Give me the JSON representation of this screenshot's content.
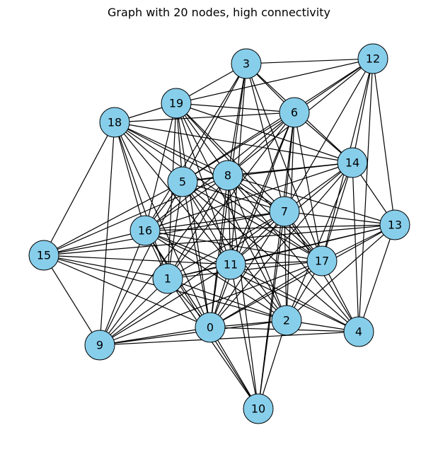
{
  "title": "Graph with 20 nodes, high connectivity",
  "colors": {
    "node_fill": "#87ceeb",
    "node_stroke": "#000000",
    "edge": "#000000",
    "background": "#ffffff"
  },
  "nodes": [
    {
      "id": "0",
      "label": "0"
    },
    {
      "id": "1",
      "label": "1"
    },
    {
      "id": "2",
      "label": "2"
    },
    {
      "id": "3",
      "label": "3"
    },
    {
      "id": "4",
      "label": "4"
    },
    {
      "id": "5",
      "label": "5"
    },
    {
      "id": "6",
      "label": "6"
    },
    {
      "id": "7",
      "label": "7"
    },
    {
      "id": "8",
      "label": "8"
    },
    {
      "id": "9",
      "label": "9"
    },
    {
      "id": "10",
      "label": "10"
    },
    {
      "id": "11",
      "label": "11"
    },
    {
      "id": "12",
      "label": "12"
    },
    {
      "id": "13",
      "label": "13"
    },
    {
      "id": "14",
      "label": "14"
    },
    {
      "id": "15",
      "label": "15"
    },
    {
      "id": "16",
      "label": "16"
    },
    {
      "id": "17",
      "label": "17"
    },
    {
      "id": "18",
      "label": "18"
    },
    {
      "id": "19",
      "label": "19"
    }
  ],
  "edges": [
    [
      "3",
      "12"
    ],
    [
      "3",
      "6"
    ],
    [
      "3",
      "14"
    ],
    [
      "3",
      "8"
    ],
    [
      "3",
      "5"
    ],
    [
      "3",
      "16"
    ],
    [
      "3",
      "11"
    ],
    [
      "3",
      "7"
    ],
    [
      "3",
      "19"
    ],
    [
      "3",
      "0"
    ],
    [
      "3",
      "17"
    ],
    [
      "12",
      "6"
    ],
    [
      "12",
      "14"
    ],
    [
      "12",
      "13"
    ],
    [
      "12",
      "17"
    ],
    [
      "12",
      "4"
    ],
    [
      "12",
      "19"
    ],
    [
      "12",
      "5"
    ],
    [
      "12",
      "8"
    ],
    [
      "12",
      "7"
    ],
    [
      "19",
      "18"
    ],
    [
      "19",
      "6"
    ],
    [
      "19",
      "14"
    ],
    [
      "19",
      "8"
    ],
    [
      "19",
      "5"
    ],
    [
      "19",
      "16"
    ],
    [
      "19",
      "1"
    ],
    [
      "19",
      "11"
    ],
    [
      "19",
      "7"
    ],
    [
      "19",
      "17"
    ],
    [
      "19",
      "0"
    ],
    [
      "19",
      "2"
    ],
    [
      "18",
      "6"
    ],
    [
      "18",
      "8"
    ],
    [
      "18",
      "5"
    ],
    [
      "18",
      "16"
    ],
    [
      "18",
      "15"
    ],
    [
      "18",
      "9"
    ],
    [
      "18",
      "11"
    ],
    [
      "18",
      "7"
    ],
    [
      "18",
      "17"
    ],
    [
      "18",
      "14"
    ],
    [
      "18",
      "0"
    ],
    [
      "18",
      "1"
    ],
    [
      "6",
      "14"
    ],
    [
      "6",
      "8"
    ],
    [
      "6",
      "5"
    ],
    [
      "6",
      "16"
    ],
    [
      "6",
      "7"
    ],
    [
      "6",
      "11"
    ],
    [
      "6",
      "17"
    ],
    [
      "6",
      "1"
    ],
    [
      "6",
      "0"
    ],
    [
      "6",
      "2"
    ],
    [
      "6",
      "10"
    ],
    [
      "14",
      "8"
    ],
    [
      "14",
      "5"
    ],
    [
      "14",
      "16"
    ],
    [
      "14",
      "7"
    ],
    [
      "14",
      "13"
    ],
    [
      "14",
      "17"
    ],
    [
      "14",
      "11"
    ],
    [
      "14",
      "4"
    ],
    [
      "14",
      "2"
    ],
    [
      "14",
      "0"
    ],
    [
      "5",
      "8"
    ],
    [
      "5",
      "16"
    ],
    [
      "5",
      "1"
    ],
    [
      "5",
      "11"
    ],
    [
      "5",
      "7"
    ],
    [
      "5",
      "17"
    ],
    [
      "5",
      "0"
    ],
    [
      "5",
      "2"
    ],
    [
      "5",
      "4"
    ],
    [
      "5",
      "15"
    ],
    [
      "5",
      "9"
    ],
    [
      "8",
      "16"
    ],
    [
      "8",
      "1"
    ],
    [
      "8",
      "11"
    ],
    [
      "8",
      "7"
    ],
    [
      "8",
      "17"
    ],
    [
      "8",
      "13"
    ],
    [
      "8",
      "0"
    ],
    [
      "8",
      "2"
    ],
    [
      "8",
      "10"
    ],
    [
      "8",
      "9"
    ],
    [
      "8",
      "4"
    ],
    [
      "8",
      "15"
    ],
    [
      "7",
      "16"
    ],
    [
      "7",
      "1"
    ],
    [
      "7",
      "11"
    ],
    [
      "7",
      "13"
    ],
    [
      "7",
      "17"
    ],
    [
      "7",
      "0"
    ],
    [
      "7",
      "2"
    ],
    [
      "7",
      "10"
    ],
    [
      "7",
      "4"
    ],
    [
      "7",
      "9"
    ],
    [
      "7",
      "15"
    ],
    [
      "16",
      "15"
    ],
    [
      "16",
      "1"
    ],
    [
      "16",
      "11"
    ],
    [
      "16",
      "13"
    ],
    [
      "16",
      "17"
    ],
    [
      "16",
      "0"
    ],
    [
      "16",
      "2"
    ],
    [
      "16",
      "9"
    ],
    [
      "16",
      "4"
    ],
    [
      "16",
      "10"
    ],
    [
      "13",
      "11"
    ],
    [
      "13",
      "17"
    ],
    [
      "13",
      "1"
    ],
    [
      "13",
      "0"
    ],
    [
      "13",
      "2"
    ],
    [
      "13",
      "4"
    ],
    [
      "13",
      "15"
    ],
    [
      "15",
      "1"
    ],
    [
      "15",
      "11"
    ],
    [
      "15",
      "9"
    ],
    [
      "15",
      "0"
    ],
    [
      "15",
      "2"
    ],
    [
      "1",
      "11"
    ],
    [
      "1",
      "17"
    ],
    [
      "1",
      "0"
    ],
    [
      "1",
      "2"
    ],
    [
      "1",
      "9"
    ],
    [
      "1",
      "10"
    ],
    [
      "11",
      "17"
    ],
    [
      "11",
      "0"
    ],
    [
      "11",
      "2"
    ],
    [
      "11",
      "4"
    ],
    [
      "11",
      "9"
    ],
    [
      "11",
      "10"
    ],
    [
      "17",
      "0"
    ],
    [
      "17",
      "2"
    ],
    [
      "17",
      "4"
    ],
    [
      "17",
      "9"
    ],
    [
      "0",
      "2"
    ],
    [
      "0",
      "4"
    ],
    [
      "0",
      "9"
    ],
    [
      "0",
      "10"
    ],
    [
      "2",
      "4"
    ],
    [
      "2",
      "10"
    ],
    [
      "2",
      "9"
    ],
    [
      "9",
      "4"
    ]
  ]
}
